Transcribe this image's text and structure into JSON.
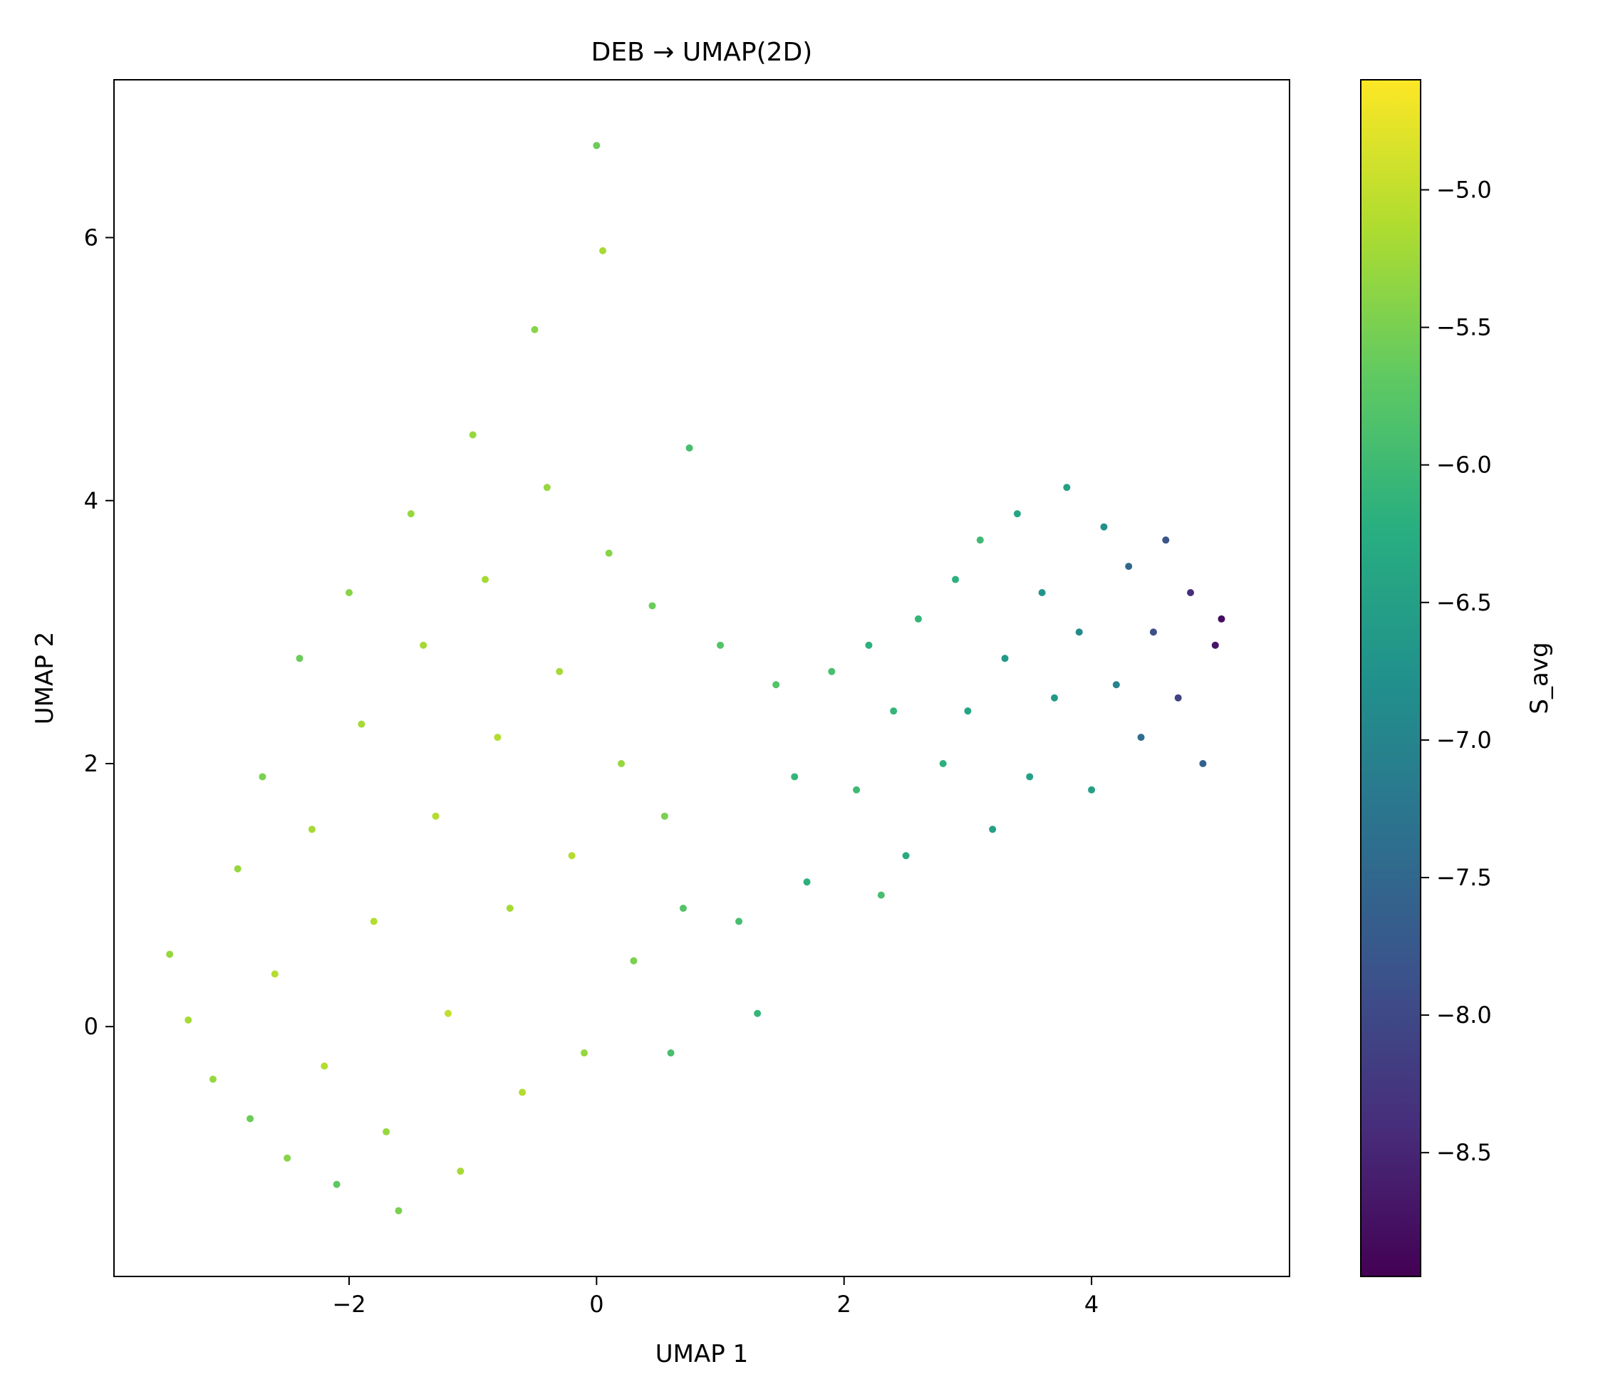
{
  "chart_data": {
    "type": "scatter",
    "title": "DEB → UMAP(2D)",
    "xlabel": "UMAP 1",
    "ylabel": "UMAP 2",
    "xlim": [
      -3.9,
      5.6
    ],
    "ylim": [
      -1.9,
      7.2
    ],
    "xticks": [
      -2,
      0,
      2,
      4
    ],
    "xtick_labels": [
      "−2",
      "0",
      "2",
      "4"
    ],
    "yticks": [
      0,
      2,
      4,
      6
    ],
    "ytick_labels": [
      "0",
      "2",
      "4",
      "6"
    ],
    "grid": false,
    "legend": "none",
    "colorbar": {
      "label": "S_avg",
      "colormap": "viridis",
      "range": [
        -8.95,
        -4.6
      ],
      "ticks": [
        -5.0,
        -5.5,
        -6.0,
        -6.5,
        -7.0,
        -7.5,
        -8.0,
        -8.5
      ],
      "tick_labels": [
        "−5.0",
        "−5.5",
        "−6.0",
        "−6.5",
        "−7.0",
        "−7.5",
        "−8.0",
        "−8.5"
      ]
    },
    "points": [
      [
        -3.45,
        0.55,
        -5.3
      ],
      [
        -3.3,
        0.05,
        -5.2
      ],
      [
        -3.1,
        -0.4,
        -5.3
      ],
      [
        -2.9,
        1.2,
        -5.3
      ],
      [
        -2.8,
        -0.7,
        -5.6
      ],
      [
        -2.7,
        1.9,
        -5.5
      ],
      [
        -2.6,
        0.4,
        -5.1
      ],
      [
        -2.5,
        -1.0,
        -5.4
      ],
      [
        -2.4,
        2.8,
        -5.6
      ],
      [
        -2.3,
        1.5,
        -5.2
      ],
      [
        -2.2,
        -0.3,
        -5.1
      ],
      [
        -2.1,
        -1.2,
        -5.7
      ],
      [
        -2.0,
        3.3,
        -5.4
      ],
      [
        -1.9,
        2.3,
        -5.2
      ],
      [
        -1.8,
        0.8,
        -5.1
      ],
      [
        -1.7,
        -0.8,
        -5.3
      ],
      [
        -1.6,
        -1.4,
        -5.5
      ],
      [
        -1.5,
        3.9,
        -5.3
      ],
      [
        -1.4,
        2.9,
        -5.2
      ],
      [
        -1.3,
        1.6,
        -5.1
      ],
      [
        -1.2,
        0.1,
        -5.0
      ],
      [
        -1.1,
        -1.1,
        -5.2
      ],
      [
        -1.0,
        4.5,
        -5.3
      ],
      [
        -0.9,
        3.4,
        -5.2
      ],
      [
        -0.8,
        2.2,
        -5.1
      ],
      [
        -0.7,
        0.9,
        -5.2
      ],
      [
        -0.6,
        -0.5,
        -5.1
      ],
      [
        -0.5,
        5.3,
        -5.4
      ],
      [
        -0.4,
        4.1,
        -5.3
      ],
      [
        -0.3,
        2.7,
        -5.2
      ],
      [
        -0.2,
        1.3,
        -5.1
      ],
      [
        -0.1,
        -0.2,
        -5.3
      ],
      [
        0.0,
        6.7,
        -5.6
      ],
      [
        0.05,
        5.9,
        -5.2
      ],
      [
        0.1,
        3.6,
        -5.4
      ],
      [
        0.2,
        2.0,
        -5.3
      ],
      [
        0.3,
        0.5,
        -5.5
      ],
      [
        0.45,
        3.2,
        -5.6
      ],
      [
        0.55,
        1.6,
        -5.5
      ],
      [
        0.6,
        -0.2,
        -5.9
      ],
      [
        0.7,
        0.9,
        -5.8
      ],
      [
        0.75,
        4.4,
        -5.9
      ],
      [
        1.0,
        2.9,
        -5.8
      ],
      [
        1.15,
        0.8,
        -5.9
      ],
      [
        1.3,
        0.1,
        -6.1
      ],
      [
        1.45,
        2.6,
        -5.8
      ],
      [
        1.6,
        1.9,
        -6.1
      ],
      [
        1.7,
        1.1,
        -6.2
      ],
      [
        1.9,
        2.7,
        -5.9
      ],
      [
        2.1,
        1.8,
        -6.0
      ],
      [
        2.2,
        2.9,
        -6.2
      ],
      [
        2.3,
        1.0,
        -5.9
      ],
      [
        2.4,
        2.4,
        -6.1
      ],
      [
        2.5,
        1.3,
        -6.3
      ],
      [
        2.6,
        3.1,
        -6.1
      ],
      [
        2.8,
        2.0,
        -6.2
      ],
      [
        2.9,
        3.4,
        -6.2
      ],
      [
        3.0,
        2.4,
        -6.4
      ],
      [
        3.1,
        3.7,
        -6.0
      ],
      [
        3.2,
        1.5,
        -6.5
      ],
      [
        3.3,
        2.8,
        -6.6
      ],
      [
        3.4,
        3.9,
        -6.4
      ],
      [
        3.5,
        1.9,
        -6.5
      ],
      [
        3.6,
        3.3,
        -6.7
      ],
      [
        3.7,
        2.5,
        -6.6
      ],
      [
        3.8,
        4.1,
        -6.5
      ],
      [
        3.9,
        3.0,
        -6.9
      ],
      [
        4.0,
        1.8,
        -6.5
      ],
      [
        4.1,
        3.8,
        -6.8
      ],
      [
        4.2,
        2.6,
        -7.0
      ],
      [
        4.3,
        3.5,
        -7.5
      ],
      [
        4.4,
        2.2,
        -7.4
      ],
      [
        4.5,
        3.0,
        -7.9
      ],
      [
        4.6,
        3.7,
        -7.8
      ],
      [
        4.7,
        2.5,
        -8.1
      ],
      [
        4.8,
        3.3,
        -8.4
      ],
      [
        4.9,
        2.0,
        -7.6
      ],
      [
        5.0,
        2.9,
        -8.7
      ],
      [
        5.05,
        3.1,
        -8.8
      ]
    ]
  }
}
